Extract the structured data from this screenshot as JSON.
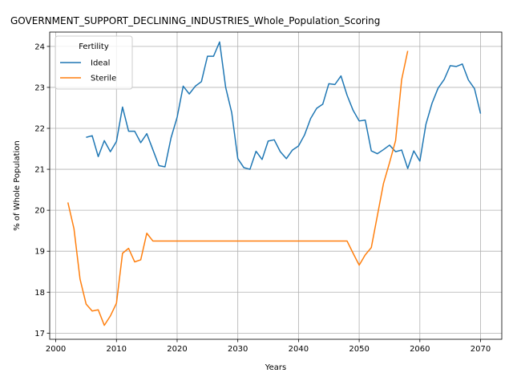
{
  "chart_data": {
    "type": "line",
    "title": "GOVERNMENT_SUPPORT_DECLINING_INDUSTRIES_Whole_Population_Scoring",
    "xlabel": "Years",
    "ylabel": "% of Whole Population",
    "xlim": [
      1999,
      2073.5
    ],
    "ylim": [
      16.85,
      24.35
    ],
    "xticks": [
      2000,
      2010,
      2020,
      2030,
      2040,
      2050,
      2060,
      2070
    ],
    "yticks": [
      17,
      18,
      19,
      20,
      21,
      22,
      23,
      24
    ],
    "grid": true,
    "legend": {
      "title": "Fertility",
      "placement": "top-left"
    },
    "series": [
      {
        "name": "Ideal",
        "color": "#1f77b4",
        "x": [
          2005,
          2006,
          2007,
          2008,
          2009,
          2010,
          2011,
          2012,
          2013,
          2014,
          2015,
          2016,
          2017,
          2018,
          2019,
          2020,
          2021,
          2022,
          2023,
          2024,
          2025,
          2026,
          2027,
          2028,
          2029,
          2030,
          2031,
          2032,
          2033,
          2034,
          2035,
          2036,
          2037,
          2038,
          2039,
          2040,
          2041,
          2042,
          2043,
          2044,
          2045,
          2046,
          2047,
          2048,
          2049,
          2050,
          2051,
          2052,
          2053,
          2054,
          2055,
          2056,
          2057,
          2058,
          2059,
          2060,
          2061,
          2062,
          2063,
          2064,
          2065,
          2066,
          2067,
          2068,
          2069,
          2070
        ],
        "values": [
          21.78,
          21.82,
          21.31,
          21.7,
          21.43,
          21.68,
          22.52,
          21.93,
          21.93,
          21.65,
          21.87,
          21.48,
          21.09,
          21.06,
          21.77,
          22.27,
          23.03,
          22.84,
          23.03,
          23.14,
          23.76,
          23.76,
          24.11,
          23.0,
          22.38,
          21.26,
          21.04,
          21.0,
          21.44,
          21.24,
          21.69,
          21.72,
          21.43,
          21.26,
          21.47,
          21.57,
          21.84,
          22.24,
          22.49,
          22.59,
          23.09,
          23.07,
          23.28,
          22.81,
          22.44,
          22.18,
          22.2,
          21.45,
          21.38,
          21.48,
          21.59,
          21.43,
          21.47,
          21.02,
          21.45,
          21.2,
          22.1,
          22.61,
          22.98,
          23.19,
          23.53,
          23.51,
          23.57,
          23.18,
          22.97,
          22.36
        ]
      },
      {
        "name": "Sterile",
        "color": "#ff7f0e",
        "x": [
          2002,
          2003,
          2004,
          2005,
          2006,
          2007,
          2008,
          2009,
          2010,
          2011,
          2012,
          2013,
          2014,
          2015,
          2016,
          2017,
          2018,
          2019,
          2020,
          2021,
          2022,
          2023,
          2024,
          2025,
          2026,
          2027,
          2028,
          2029,
          2030,
          2031,
          2032,
          2033,
          2034,
          2035,
          2036,
          2037,
          2038,
          2039,
          2040,
          2041,
          2042,
          2043,
          2044,
          2045,
          2046,
          2047,
          2048,
          2049,
          2050,
          2051,
          2052,
          2053,
          2054,
          2055,
          2056,
          2057,
          2058
        ],
        "values": [
          20.19,
          19.55,
          18.32,
          17.71,
          17.54,
          17.57,
          17.19,
          17.42,
          17.73,
          18.95,
          19.07,
          18.74,
          18.79,
          19.44,
          19.25,
          19.25,
          19.25,
          19.25,
          19.25,
          19.25,
          19.25,
          19.25,
          19.25,
          19.25,
          19.25,
          19.25,
          19.25,
          19.25,
          19.25,
          19.25,
          19.25,
          19.25,
          19.25,
          19.25,
          19.25,
          19.25,
          19.25,
          19.25,
          19.25,
          19.25,
          19.25,
          19.25,
          19.25,
          19.25,
          19.25,
          19.25,
          19.25,
          18.95,
          18.66,
          18.91,
          19.09,
          19.87,
          20.65,
          21.16,
          21.7,
          23.19,
          23.89
        ]
      }
    ]
  }
}
